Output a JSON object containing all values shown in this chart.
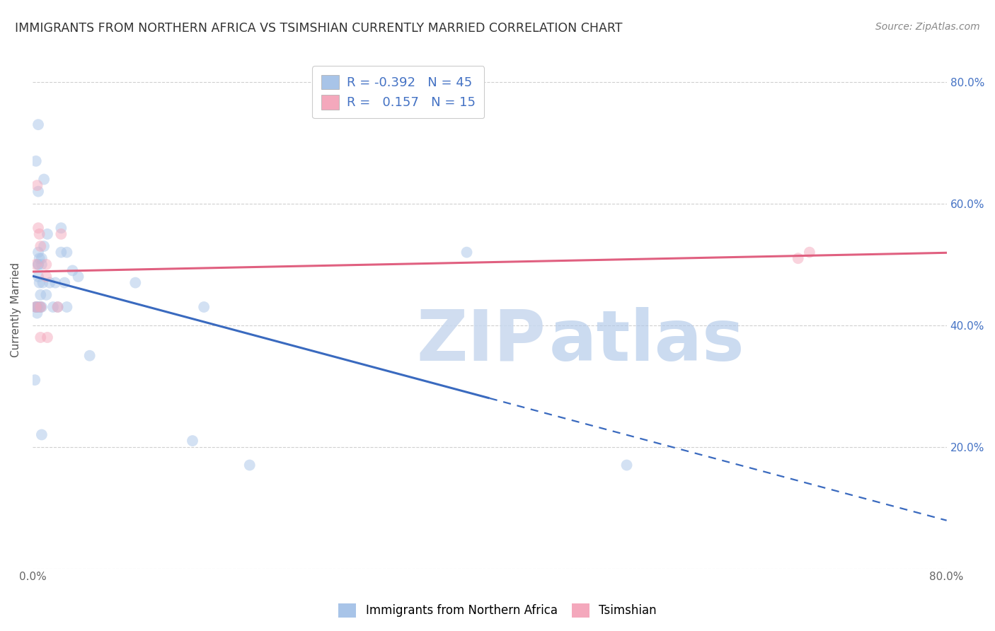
{
  "title": "IMMIGRANTS FROM NORTHERN AFRICA VS TSIMSHIAN CURRENTLY MARRIED CORRELATION CHART",
  "source": "Source: ZipAtlas.com",
  "ylabel": "Currently Married",
  "xlim": [
    0.0,
    0.8
  ],
  "ylim": [
    0.0,
    0.85
  ],
  "x_ticks": [
    0.0,
    0.1,
    0.2,
    0.3,
    0.4,
    0.5,
    0.6,
    0.7,
    0.8
  ],
  "y_ticks": [
    0.0,
    0.2,
    0.4,
    0.6,
    0.8
  ],
  "blue_R": -0.392,
  "blue_N": 45,
  "pink_R": 0.157,
  "pink_N": 15,
  "blue_color": "#a8c4e8",
  "pink_color": "#f4a8bc",
  "blue_line_color": "#3a6abf",
  "pink_line_color": "#e06080",
  "blue_scatter_x": [
    0.002,
    0.003,
    0.003,
    0.003,
    0.004,
    0.004,
    0.004,
    0.005,
    0.005,
    0.005,
    0.005,
    0.005,
    0.005,
    0.006,
    0.006,
    0.006,
    0.007,
    0.007,
    0.008,
    0.008,
    0.008,
    0.008,
    0.009,
    0.01,
    0.01,
    0.012,
    0.013,
    0.015,
    0.018,
    0.02,
    0.022,
    0.025,
    0.025,
    0.028,
    0.03,
    0.03,
    0.035,
    0.04,
    0.05,
    0.09,
    0.14,
    0.15,
    0.19,
    0.38,
    0.52
  ],
  "blue_scatter_y": [
    0.31,
    0.43,
    0.43,
    0.67,
    0.42,
    0.43,
    0.43,
    0.48,
    0.5,
    0.5,
    0.52,
    0.62,
    0.73,
    0.43,
    0.47,
    0.51,
    0.43,
    0.45,
    0.22,
    0.43,
    0.5,
    0.51,
    0.47,
    0.53,
    0.64,
    0.45,
    0.55,
    0.47,
    0.43,
    0.47,
    0.43,
    0.52,
    0.56,
    0.47,
    0.43,
    0.52,
    0.49,
    0.48,
    0.35,
    0.47,
    0.21,
    0.43,
    0.17,
    0.52,
    0.17
  ],
  "pink_scatter_x": [
    0.003,
    0.003,
    0.004,
    0.005,
    0.006,
    0.007,
    0.007,
    0.007,
    0.012,
    0.012,
    0.013,
    0.022,
    0.025,
    0.67,
    0.68
  ],
  "pink_scatter_y": [
    0.43,
    0.5,
    0.63,
    0.56,
    0.55,
    0.38,
    0.43,
    0.53,
    0.48,
    0.5,
    0.38,
    0.43,
    0.55,
    0.51,
    0.52
  ],
  "blue_line_solid_end": 0.4,
  "blue_line_x_start": 0.0,
  "blue_line_x_end": 0.8,
  "pink_line_x_start": 0.0,
  "pink_line_x_end": 0.8,
  "legend_label_blue": "Immigrants from Northern Africa",
  "legend_label_pink": "Tsimshian",
  "marker_size": 130,
  "marker_alpha": 0.5
}
